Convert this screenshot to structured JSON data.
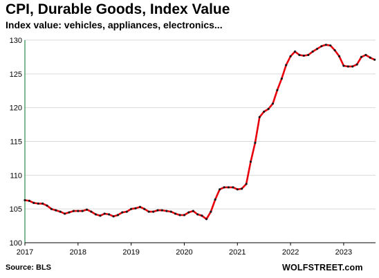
{
  "chart_data": {
    "type": "line",
    "title": "CPI, Durable Goods,  Index Value",
    "subtitle": "Index value: vehicles, appliances, electronics...",
    "source": "Source: BLS",
    "brand": "WOLFSTREET.com",
    "xlim": [
      2017,
      2023.6
    ],
    "ylim": [
      100,
      130
    ],
    "yticks": [
      100,
      105,
      110,
      115,
      120,
      125,
      130
    ],
    "xticks": [
      2017,
      2018,
      2019,
      2020,
      2021,
      2022,
      2023
    ],
    "grid": "horizontal",
    "line_color": "#e8000b",
    "marker_color": "#1a1a1a",
    "series": [
      {
        "x": [
          2017.0,
          2017.083,
          2017.167,
          2017.25,
          2017.333,
          2017.417,
          2017.5,
          2017.583,
          2017.667,
          2017.75,
          2017.833,
          2017.917,
          2018.0,
          2018.083,
          2018.167,
          2018.25,
          2018.333,
          2018.417,
          2018.5,
          2018.583,
          2018.667,
          2018.75,
          2018.833,
          2018.917,
          2019.0,
          2019.083,
          2019.167,
          2019.25,
          2019.333,
          2019.417,
          2019.5,
          2019.583,
          2019.667,
          2019.75,
          2019.833,
          2019.917,
          2020.0,
          2020.083,
          2020.167,
          2020.25,
          2020.333,
          2020.417,
          2020.5,
          2020.583,
          2020.667,
          2020.75,
          2020.833,
          2020.917,
          2021.0,
          2021.083,
          2021.167,
          2021.25,
          2021.333,
          2021.417,
          2021.5,
          2021.583,
          2021.667,
          2021.75,
          2021.833,
          2021.917,
          2022.0,
          2022.083,
          2022.167,
          2022.25,
          2022.333,
          2022.417,
          2022.5,
          2022.583,
          2022.667,
          2022.75,
          2022.833,
          2022.917,
          2023.0,
          2023.083,
          2023.167,
          2023.25,
          2023.333,
          2023.417,
          2023.5,
          2023.583
        ],
        "values": [
          106.3,
          106.2,
          105.9,
          105.8,
          105.8,
          105.5,
          105.0,
          104.8,
          104.6,
          104.3,
          104.5,
          104.7,
          104.7,
          104.7,
          104.9,
          104.6,
          104.2,
          104.0,
          104.3,
          104.2,
          103.9,
          104.1,
          104.5,
          104.6,
          105.0,
          105.1,
          105.3,
          105.0,
          104.6,
          104.6,
          104.8,
          104.8,
          104.7,
          104.6,
          104.3,
          104.1,
          104.1,
          104.5,
          104.7,
          104.2,
          104.0,
          103.5,
          104.6,
          106.4,
          107.9,
          108.2,
          108.2,
          108.2,
          107.9,
          108.0,
          108.7,
          112.0,
          114.8,
          118.6,
          119.4,
          119.8,
          120.6,
          122.6,
          124.3,
          126.3,
          127.6,
          128.3,
          127.8,
          127.7,
          127.8,
          128.3,
          128.7,
          129.1,
          129.3,
          129.2,
          128.5,
          127.6,
          126.2,
          126.1,
          126.1,
          126.4,
          127.5,
          127.8,
          127.4,
          127.1
        ]
      }
    ]
  }
}
